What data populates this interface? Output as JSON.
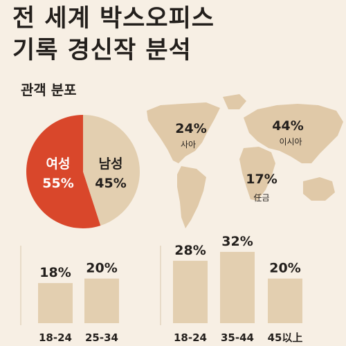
{
  "title_line1": "전 세계 박스오피스",
  "title_line2": "기록 경신작 분석",
  "subtitle": "관객 분포",
  "colors": {
    "background": "#f7efe4",
    "female": "#d9472b",
    "male": "#e3cfb0",
    "bar": "#e3cfb0",
    "map": "#e0c9a8",
    "text": "#231f1c"
  },
  "chart_data": [
    {
      "type": "pie",
      "slices": [
        {
          "label": "여성",
          "value": 55,
          "value_label": "55%"
        },
        {
          "label": "남성",
          "value": 45,
          "value_label": "45%"
        }
      ]
    },
    {
      "type": "map",
      "regions": [
        {
          "label": "사아",
          "value": 24,
          "value_label": "24%"
        },
        {
          "label": "이시아",
          "value": 44,
          "value_label": "44%"
        },
        {
          "label": "任금",
          "value": 17,
          "value_label": "17%"
        }
      ]
    },
    {
      "type": "bar",
      "categories": [
        "18-24",
        "25-34"
      ],
      "values": [
        18,
        20
      ],
      "value_labels": [
        "18%",
        "20%"
      ]
    },
    {
      "type": "bar",
      "categories": [
        "18-24",
        "35-44",
        "45以上"
      ],
      "values": [
        28,
        32,
        20
      ],
      "value_labels": [
        "28%",
        "32%",
        "20%"
      ]
    }
  ]
}
